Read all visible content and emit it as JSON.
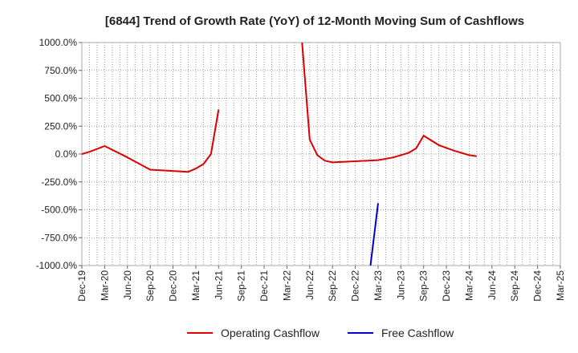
{
  "chart_data": {
    "type": "line",
    "title": "[6844]  Trend of Growth Rate (YoY) of 12-Month Moving Sum of Cashflows",
    "xlabel": "",
    "ylabel": "",
    "ylim": [
      -1000,
      1000
    ],
    "y_ticks": [
      1000,
      750,
      500,
      250,
      0,
      -250,
      -500,
      -750,
      -1000
    ],
    "y_tick_labels": [
      "1000.0%",
      "750.0%",
      "500.0%",
      "250.0%",
      "0.0%",
      "-250.0%",
      "-500.0%",
      "-750.0%",
      "-1000.0%"
    ],
    "x_tick_labels": [
      "Dec-19",
      "Mar-20",
      "Jun-20",
      "Sep-20",
      "Dec-20",
      "Mar-21",
      "Jun-21",
      "Sep-21",
      "Dec-21",
      "Mar-22",
      "Jun-22",
      "Sep-22",
      "Dec-22",
      "Mar-23",
      "Jun-23",
      "Sep-23",
      "Dec-23",
      "Mar-24",
      "Jun-24",
      "Sep-24",
      "Dec-24",
      "Mar-25"
    ],
    "grid": true,
    "legend_position": "bottom",
    "series": [
      {
        "name": "Operating Cashflow",
        "color": "#dd0000",
        "segments": [
          [
            [
              "Dec-19",
              0
            ],
            [
              "Jan-20",
              20
            ],
            [
              "Feb-20",
              45
            ],
            [
              "Mar-20",
              72
            ],
            [
              "Jun-20",
              -30
            ],
            [
              "Sep-20",
              -140
            ],
            [
              "Dec-20",
              -152
            ],
            [
              "Feb-21",
              -160
            ],
            [
              "Mar-21",
              -130
            ],
            [
              "Apr-21",
              -90
            ],
            [
              "May-21",
              0
            ],
            [
              "Jun-21",
              400
            ]
          ],
          [
            [
              "May-22",
              1000
            ],
            [
              "Jun-22",
              130
            ],
            [
              "Jul-22",
              -10
            ],
            [
              "Aug-22",
              -60
            ],
            [
              "Sep-22",
              -75
            ],
            [
              "Dec-22",
              -65
            ],
            [
              "Mar-23",
              -55
            ],
            [
              "May-23",
              -30
            ],
            [
              "Jun-23",
              -10
            ],
            [
              "Jul-23",
              10
            ],
            [
              "Aug-23",
              50
            ],
            [
              "Sep-23",
              165
            ],
            [
              "Nov-23",
              80
            ],
            [
              "Jan-24",
              30
            ],
            [
              "Mar-24",
              -10
            ],
            [
              "Apr-24",
              -20
            ]
          ]
        ]
      },
      {
        "name": "Free Cashflow",
        "color": "#0000cc",
        "segments": [
          [
            [
              "Feb-23",
              -1000
            ],
            [
              "Mar-23",
              -440
            ]
          ]
        ]
      }
    ]
  }
}
